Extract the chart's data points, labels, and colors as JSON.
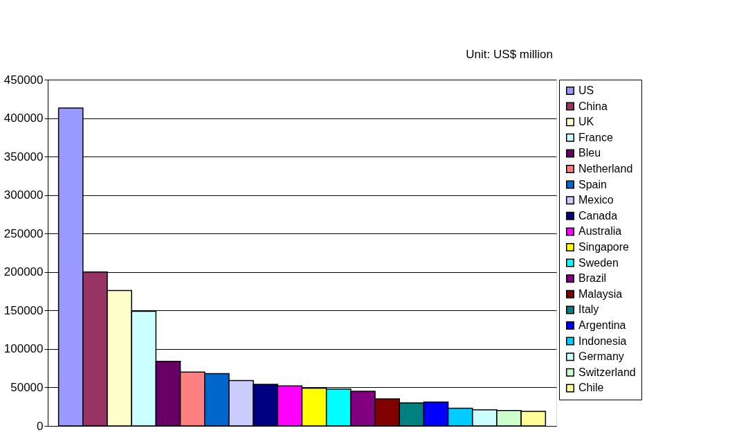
{
  "chart_data": {
    "type": "bar",
    "categories": [
      null
    ],
    "annotations": [
      "Unit: US$ million"
    ],
    "series": [
      {
        "name": "US",
        "color": "#9999ff",
        "values": [
          413000
        ]
      },
      {
        "name": "China",
        "color": "#993366",
        "values": [
          200000
        ]
      },
      {
        "name": "UK",
        "color": "#ffffcc",
        "values": [
          176000
        ]
      },
      {
        "name": "France",
        "color": "#ccffff",
        "values": [
          149000
        ]
      },
      {
        "name": "Bleu",
        "color": "#660066",
        "values": [
          84000
        ]
      },
      {
        "name": "Netherland",
        "color": "#ff8080",
        "values": [
          70000
        ]
      },
      {
        "name": "Spain",
        "color": "#0066cc",
        "values": [
          68000
        ]
      },
      {
        "name": "Mexico",
        "color": "#ccccff",
        "values": [
          59000
        ]
      },
      {
        "name": "Canada",
        "color": "#000080",
        "values": [
          54000
        ]
      },
      {
        "name": "Australia",
        "color": "#ff00ff",
        "values": [
          52000
        ]
      },
      {
        "name": "Singapore",
        "color": "#ffff00",
        "values": [
          49000
        ]
      },
      {
        "name": "Sweden",
        "color": "#00ffff",
        "values": [
          48000
        ]
      },
      {
        "name": "Brazil",
        "color": "#800080",
        "values": [
          45000
        ]
      },
      {
        "name": "Malaysia",
        "color": "#800000",
        "values": [
          35000
        ]
      },
      {
        "name": "Italy",
        "color": "#008080",
        "values": [
          30000
        ]
      },
      {
        "name": "Argentina",
        "color": "#0000ff",
        "values": [
          31000
        ]
      },
      {
        "name": "Indonesia",
        "color": "#00ccff",
        "values": [
          23000
        ]
      },
      {
        "name": "Germany",
        "color": "#ccffff",
        "values": [
          21000
        ]
      },
      {
        "name": "Switzerland",
        "color": "#ccffcc",
        "values": [
          20000
        ]
      },
      {
        "name": "Chile",
        "color": "#ffff99",
        "values": [
          19000
        ]
      }
    ],
    "ylim": [
      0,
      450000
    ],
    "yticks": [
      0,
      50000,
      100000,
      150000,
      200000,
      250000,
      300000,
      350000,
      400000,
      450000
    ],
    "grid": "y",
    "legend": "right"
  }
}
